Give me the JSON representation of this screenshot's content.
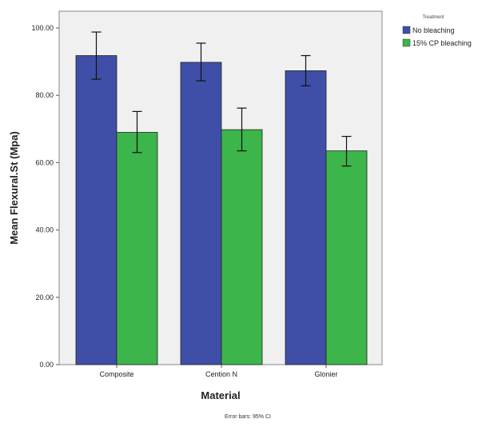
{
  "chart_data": {
    "type": "bar",
    "title": "",
    "xlabel": "Material",
    "ylabel": "Mean Flexural.St (Mpa)",
    "ylim": [
      0,
      100
    ],
    "yticks": [
      "0.00",
      "20.00",
      "40.00",
      "60.00",
      "80.00",
      "100.00"
    ],
    "categories": [
      "Composite",
      "Cention N",
      "Glonier"
    ],
    "legend": {
      "title": "Treatment",
      "placement": "top-right"
    },
    "series": [
      {
        "name": "No bleaching",
        "color": "#3f4fa8",
        "values": [
          91.8,
          89.8,
          87.3
        ],
        "error_low": [
          84.8,
          84.3,
          82.8
        ],
        "error_high": [
          98.8,
          95.5,
          91.8
        ]
      },
      {
        "name": "15% CP  bleaching",
        "color": "#3cb54a",
        "values": [
          69.0,
          69.8,
          63.5
        ],
        "error_low": [
          63.0,
          63.5,
          59.0
        ],
        "error_high": [
          75.2,
          76.2,
          67.8
        ]
      }
    ],
    "footnote": "Error bars: 95% CI",
    "grid": false
  }
}
